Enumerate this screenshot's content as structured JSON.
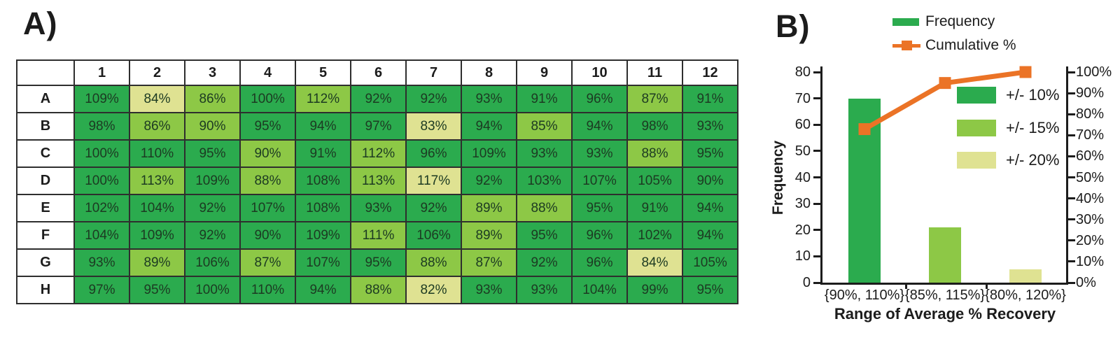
{
  "colors": {
    "dark": "#2BAB4E",
    "medium": "#8DC846",
    "pale": "#DFE292",
    "orange": "#EB7326",
    "axis": "#1c1c1c"
  },
  "panel_a": {
    "label": "A)"
  },
  "panel_b": {
    "label": "B)"
  },
  "chart_data": [
    {
      "type": "heatmap",
      "description": "96-well plate of average % recovery values, colored by recovery range",
      "columns": [
        "1",
        "2",
        "3",
        "4",
        "5",
        "6",
        "7",
        "8",
        "9",
        "10",
        "11",
        "12"
      ],
      "rows": [
        "A",
        "B",
        "C",
        "D",
        "E",
        "F",
        "G",
        "H"
      ],
      "values": [
        [
          "109%",
          "84%",
          "86%",
          "100%",
          "112%",
          "92%",
          "92%",
          "93%",
          "91%",
          "96%",
          "87%",
          "91%"
        ],
        [
          "98%",
          "86%",
          "90%",
          "95%",
          "94%",
          "97%",
          "83%",
          "94%",
          "85%",
          "94%",
          "98%",
          "93%"
        ],
        [
          "100%",
          "110%",
          "95%",
          "90%",
          "91%",
          "112%",
          "96%",
          "109%",
          "93%",
          "93%",
          "88%",
          "95%"
        ],
        [
          "100%",
          "113%",
          "109%",
          "88%",
          "108%",
          "113%",
          "117%",
          "92%",
          "103%",
          "107%",
          "105%",
          "90%"
        ],
        [
          "102%",
          "104%",
          "92%",
          "107%",
          "108%",
          "93%",
          "92%",
          "89%",
          "88%",
          "95%",
          "91%",
          "94%"
        ],
        [
          "104%",
          "109%",
          "92%",
          "90%",
          "109%",
          "111%",
          "106%",
          "89%",
          "95%",
          "96%",
          "102%",
          "94%"
        ],
        [
          "93%",
          "89%",
          "106%",
          "87%",
          "107%",
          "95%",
          "88%",
          "87%",
          "92%",
          "96%",
          "84%",
          "105%"
        ],
        [
          "97%",
          "95%",
          "100%",
          "110%",
          "94%",
          "88%",
          "82%",
          "93%",
          "93%",
          "104%",
          "99%",
          "95%"
        ]
      ],
      "levels": [
        [
          "d",
          "p",
          "m",
          "d",
          "m",
          "d",
          "d",
          "d",
          "d",
          "d",
          "m",
          "d"
        ],
        [
          "d",
          "m",
          "m",
          "d",
          "d",
          "d",
          "p",
          "d",
          "m",
          "d",
          "d",
          "d"
        ],
        [
          "d",
          "d",
          "d",
          "m",
          "d",
          "m",
          "d",
          "d",
          "d",
          "d",
          "m",
          "d"
        ],
        [
          "d",
          "m",
          "d",
          "m",
          "d",
          "m",
          "p",
          "d",
          "d",
          "d",
          "d",
          "d"
        ],
        [
          "d",
          "d",
          "d",
          "d",
          "d",
          "d",
          "d",
          "m",
          "m",
          "d",
          "d",
          "d"
        ],
        [
          "d",
          "d",
          "d",
          "d",
          "d",
          "m",
          "d",
          "m",
          "d",
          "d",
          "d",
          "d"
        ],
        [
          "d",
          "m",
          "d",
          "m",
          "d",
          "d",
          "m",
          "m",
          "d",
          "d",
          "p",
          "d"
        ],
        [
          "d",
          "d",
          "d",
          "d",
          "d",
          "m",
          "p",
          "d",
          "d",
          "d",
          "d",
          "d"
        ]
      ],
      "level_legend": [
        {
          "level": "d",
          "label": "+/- 10%"
        },
        {
          "level": "m",
          "label": "+/- 15%"
        },
        {
          "level": "p",
          "label": "+/- 20%"
        }
      ]
    },
    {
      "type": "bar",
      "categories": [
        "{90%, 110%}",
        "{85%, 115%}",
        "{80%, 120%}"
      ],
      "series": [
        {
          "name": "Frequency",
          "type": "bar",
          "values": [
            70,
            21,
            5
          ],
          "bar_levels": [
            "d",
            "m",
            "p"
          ],
          "axis": "left"
        },
        {
          "name": "Cumulative %",
          "type": "line",
          "values": [
            72.9,
            94.8,
            100
          ],
          "axis": "right"
        }
      ],
      "xlabel": "Range of Average % Recovery",
      "ylabel": "Frequency",
      "ylim": [
        0,
        80
      ],
      "y2lim": [
        0,
        100
      ],
      "left_ticks": [
        0,
        10,
        20,
        30,
        40,
        50,
        60,
        70,
        80
      ],
      "right_ticks": [
        "0%",
        "10%",
        "20%",
        "30%",
        "40%",
        "50%",
        "60%",
        "70%",
        "80%",
        "90%",
        "100%"
      ],
      "legend_position": "top-right",
      "grid": false
    }
  ]
}
